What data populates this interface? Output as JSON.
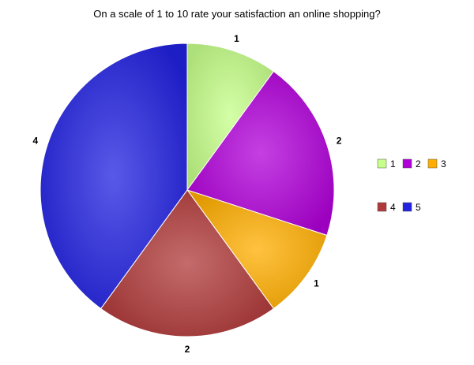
{
  "chart_data": {
    "type": "pie",
    "title": "On a scale of 1 to 10 rate  your  satisfaction an online shopping?",
    "categories": [
      "1",
      "2",
      "3",
      "4",
      "5"
    ],
    "values": [
      1,
      2,
      1,
      2,
      4
    ],
    "colors": [
      "#c6ff8a",
      "#b000d8",
      "#ffae00",
      "#b03a3a",
      "#2222e0"
    ],
    "legend_position": "right"
  }
}
